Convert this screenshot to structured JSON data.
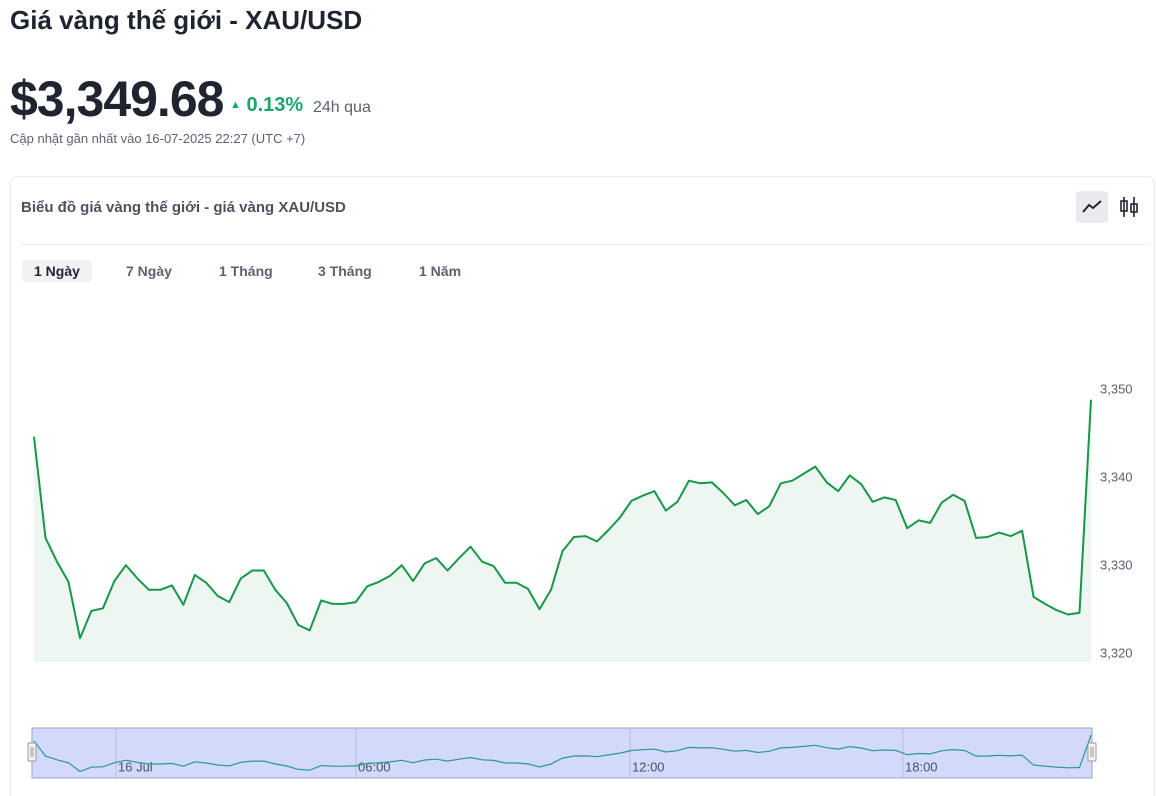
{
  "header": {
    "title": "Giá vàng thế giới - XAU/USD",
    "price": "$3,349.68",
    "change": "0.13%",
    "period": "24h qua",
    "updated": "Cập nhật gần nhất vào 16-07-2025 22:27 (UTC +7)"
  },
  "card": {
    "title": "Biểu đồ giá vàng thế giới - giá vàng XAU/USD",
    "tabs": [
      "1 Ngày",
      "7 Ngày",
      "1 Tháng",
      "3 Tháng",
      "1 Năm"
    ],
    "active_tab": 0
  },
  "chart_data": {
    "type": "line",
    "color": "#169848",
    "area_color": "#edf6f0",
    "values": [
      3344.7,
      3333.2,
      3330.5,
      3328.2,
      3321.8,
      3324.9,
      3325.2,
      3328.3,
      3330.1,
      3328.6,
      3327.3,
      3327.3,
      3327.8,
      3325.6,
      3329.0,
      3328.1,
      3326.6,
      3325.9,
      3328.6,
      3329.5,
      3329.5,
      3327.3,
      3325.8,
      3323.3,
      3322.7,
      3326.1,
      3325.7,
      3325.7,
      3325.9,
      3327.7,
      3328.2,
      3328.9,
      3330.1,
      3328.3,
      3330.3,
      3330.9,
      3329.5,
      3330.9,
      3332.2,
      3330.5,
      3330.0,
      3328.1,
      3328.1,
      3327.4,
      3325.1,
      3327.3,
      3331.7,
      3333.3,
      3333.4,
      3332.8,
      3334.1,
      3335.5,
      3337.4,
      3338.0,
      3338.5,
      3336.3,
      3337.3,
      3339.7,
      3339.4,
      3339.5,
      3338.3,
      3336.9,
      3337.5,
      3335.9,
      3336.8,
      3339.4,
      3339.7,
      3340.5,
      3341.3,
      3339.5,
      3338.5,
      3340.3,
      3339.3,
      3337.3,
      3337.8,
      3337.5,
      3334.3,
      3335.2,
      3334.9,
      3337.2,
      3338.1,
      3337.4,
      3333.2,
      3333.3,
      3333.8,
      3333.4,
      3334.0,
      3326.5,
      3325.7,
      3325.0,
      3324.5,
      3324.7,
      3348.9
    ],
    "ylim": [
      3319.1,
      3352
    ],
    "yticks": [
      {
        "value": 3320,
        "label": "3,320"
      },
      {
        "value": 3330,
        "label": "3,330"
      },
      {
        "value": 3340,
        "label": "3,340"
      },
      {
        "value": 3350,
        "label": "3,350"
      }
    ],
    "navigator_labels": [
      "16 Jul",
      "06:00",
      "12:00",
      "18:00"
    ]
  }
}
